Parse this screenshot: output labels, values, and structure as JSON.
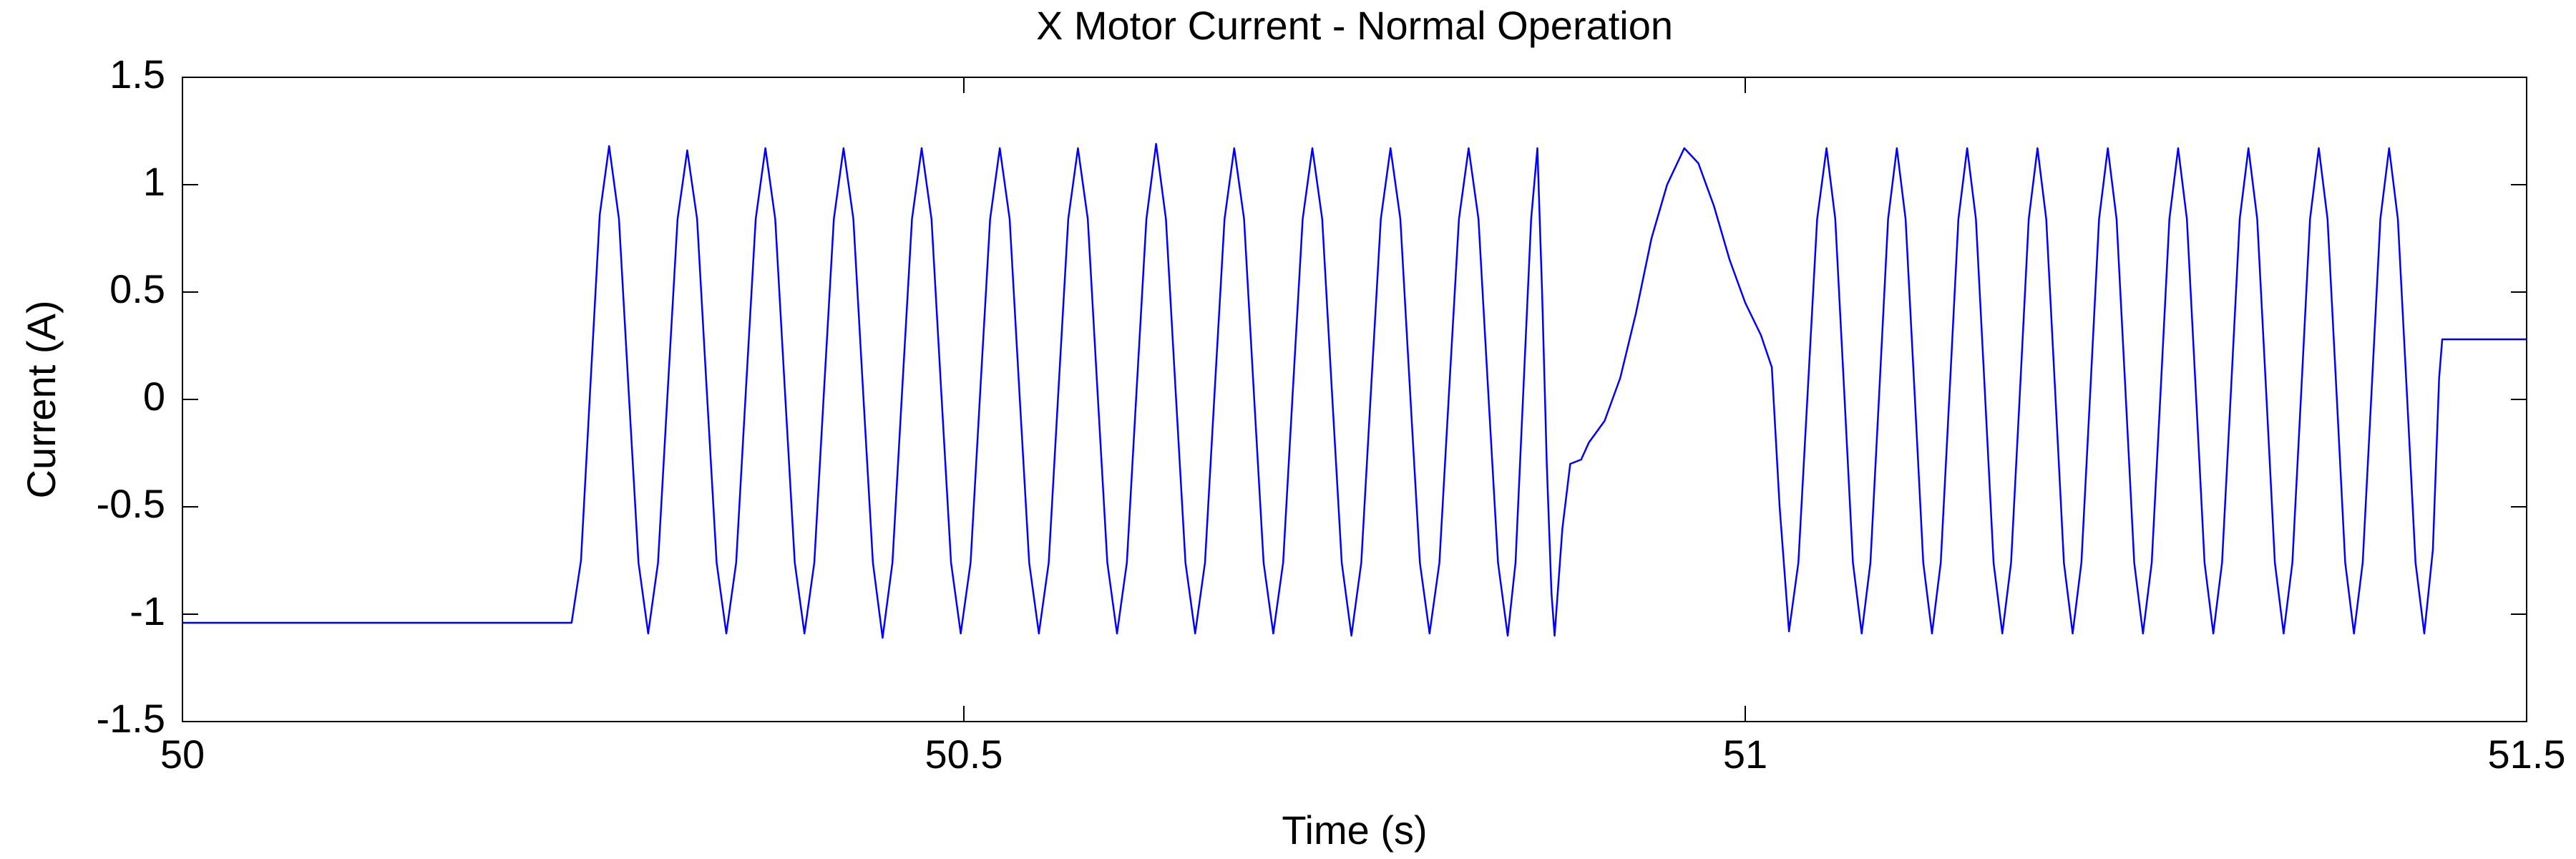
{
  "chart_data": {
    "type": "line",
    "title": "X Motor Current - Normal Operation",
    "xlabel": "Time (s)",
    "ylabel": "Current (A)",
    "color": "#0000ff",
    "xlim": [
      50,
      51.5
    ],
    "xticks": [
      50,
      50.5,
      51,
      51.5
    ],
    "ylim": [
      -1.5,
      1.5
    ],
    "yticks": [
      -1.5,
      -1,
      -0.5,
      0,
      0.5,
      1,
      1.5
    ],
    "grid": false,
    "x": [
      50,
      50.249,
      50.255,
      50.261,
      50.267,
      50.273,
      50.2793,
      50.2855,
      50.2918,
      50.298,
      50.3043,
      50.3105,
      50.3168,
      50.323,
      50.3293,
      50.3355,
      50.3418,
      50.348,
      50.3543,
      50.3605,
      50.3668,
      50.373,
      50.3793,
      50.3855,
      50.3918,
      50.398,
      50.4043,
      50.4105,
      50.4168,
      50.423,
      50.4293,
      50.4355,
      50.4418,
      50.448,
      50.4543,
      50.4605,
      50.4668,
      50.473,
      50.4793,
      50.4855,
      50.4918,
      50.498,
      50.5043,
      50.5105,
      50.5168,
      50.523,
      50.5293,
      50.5355,
      50.5418,
      50.548,
      50.5543,
      50.5605,
      50.5668,
      50.573,
      50.5793,
      50.5855,
      50.5918,
      50.598,
      50.6043,
      50.6105,
      50.6168,
      50.623,
      50.6293,
      50.6355,
      50.6418,
      50.648,
      50.6543,
      50.6605,
      50.6668,
      50.673,
      50.6793,
      50.6855,
      50.6918,
      50.698,
      50.7043,
      50.7105,
      50.7168,
      50.723,
      50.7293,
      50.7355,
      50.7418,
      50.748,
      50.7543,
      50.7605,
      50.7668,
      50.773,
      50.7793,
      50.7855,
      50.7918,
      50.798,
      50.8043,
      50.8105,
      50.8168,
      50.823,
      50.8293,
      50.8355,
      50.8418,
      50.848,
      50.853,
      50.858,
      50.863,
      50.867,
      50.87,
      50.873,
      50.876,
      50.878,
      50.883,
      50.888,
      50.895,
      50.9,
      50.91,
      50.92,
      50.93,
      50.94,
      50.95,
      50.961,
      50.97,
      50.98,
      50.99,
      51.0,
      51.01,
      51.017,
      51.022,
      51.028,
      51.034,
      51.04,
      51.046,
      51.052,
      51.0576,
      51.0633,
      51.0689,
      51.0745,
      51.0801,
      51.0858,
      51.0914,
      51.097,
      51.1026,
      51.1083,
      51.1139,
      51.1195,
      51.1251,
      51.1308,
      51.1364,
      51.142,
      51.1476,
      51.1533,
      51.1589,
      51.1645,
      51.1701,
      51.1758,
      51.1814,
      51.187,
      51.1926,
      51.1983,
      51.2039,
      51.2095,
      51.2151,
      51.2208,
      51.2264,
      51.232,
      51.2376,
      51.2433,
      51.2489,
      51.2545,
      51.2601,
      51.2658,
      51.2714,
      51.277,
      51.2826,
      51.2883,
      51.2939,
      51.2995,
      51.3051,
      51.3108,
      51.3164,
      51.322,
      51.3276,
      51.3333,
      51.3389,
      51.3445,
      51.3501,
      51.3558,
      51.3614,
      51.367,
      51.3726,
      51.3783,
      51.3839,
      51.3895,
      51.3951,
      51.4008,
      51.4064,
      51.412,
      51.4176,
      51.4233,
      51.4289,
      51.4345,
      51.44,
      51.444,
      51.446,
      51.5
    ],
    "values": [
      -1.04,
      -1.04,
      -0.75,
      0.06,
      0.86,
      1.18,
      0.84,
      0.04,
      -0.76,
      -1.09,
      -0.76,
      0.04,
      0.84,
      1.16,
      0.84,
      0.04,
      -0.76,
      -1.09,
      -0.76,
      0.04,
      0.84,
      1.17,
      0.84,
      0.04,
      -0.76,
      -1.09,
      -0.76,
      0.04,
      0.84,
      1.17,
      0.84,
      0.04,
      -0.76,
      -1.11,
      -0.76,
      0.04,
      0.84,
      1.17,
      0.84,
      0.04,
      -0.76,
      -1.09,
      -0.76,
      0.04,
      0.84,
      1.17,
      0.84,
      0.04,
      -0.76,
      -1.09,
      -0.76,
      0.04,
      0.84,
      1.17,
      0.84,
      0.04,
      -0.76,
      -1.09,
      -0.76,
      0.04,
      0.84,
      1.19,
      0.84,
      0.04,
      -0.76,
      -1.09,
      -0.76,
      0.04,
      0.84,
      1.17,
      0.84,
      0.04,
      -0.76,
      -1.09,
      -0.76,
      0.04,
      0.84,
      1.17,
      0.84,
      0.04,
      -0.76,
      -1.1,
      -0.76,
      0.04,
      0.84,
      1.17,
      0.84,
      0.04,
      -0.76,
      -1.09,
      -0.76,
      0.04,
      0.84,
      1.17,
      0.84,
      0.04,
      -0.76,
      -1.1,
      -0.76,
      0.04,
      0.84,
      1.17,
      0.5,
      -0.3,
      -0.9,
      -1.1,
      -0.6,
      -0.3,
      -0.28,
      -0.2,
      -0.1,
      0.1,
      0.4,
      0.75,
      1.0,
      1.17,
      1.1,
      0.9,
      0.65,
      0.45,
      0.3,
      0.15,
      -0.5,
      -1.08,
      -0.76,
      0.04,
      0.84,
      1.17,
      0.84,
      0.04,
      -0.76,
      -1.09,
      -0.76,
      0.04,
      0.84,
      1.17,
      0.84,
      0.04,
      -0.76,
      -1.09,
      -0.76,
      0.04,
      0.84,
      1.17,
      0.84,
      0.04,
      -0.76,
      -1.09,
      -0.76,
      0.04,
      0.84,
      1.17,
      0.84,
      0.04,
      -0.76,
      -1.09,
      -0.76,
      0.04,
      0.84,
      1.17,
      0.84,
      0.04,
      -0.76,
      -1.09,
      -0.76,
      0.04,
      0.84,
      1.17,
      0.84,
      0.04,
      -0.76,
      -1.09,
      -0.76,
      0.04,
      0.84,
      1.17,
      0.84,
      0.04,
      -0.76,
      -1.09,
      -0.76,
      0.04,
      0.84,
      1.17,
      0.84,
      0.04,
      -0.76,
      -1.09,
      -0.76,
      0.04,
      0.84,
      1.17,
      0.84,
      0.04,
      -0.76,
      -1.09,
      -0.7,
      0.1,
      0.28,
      0.28
    ]
  }
}
